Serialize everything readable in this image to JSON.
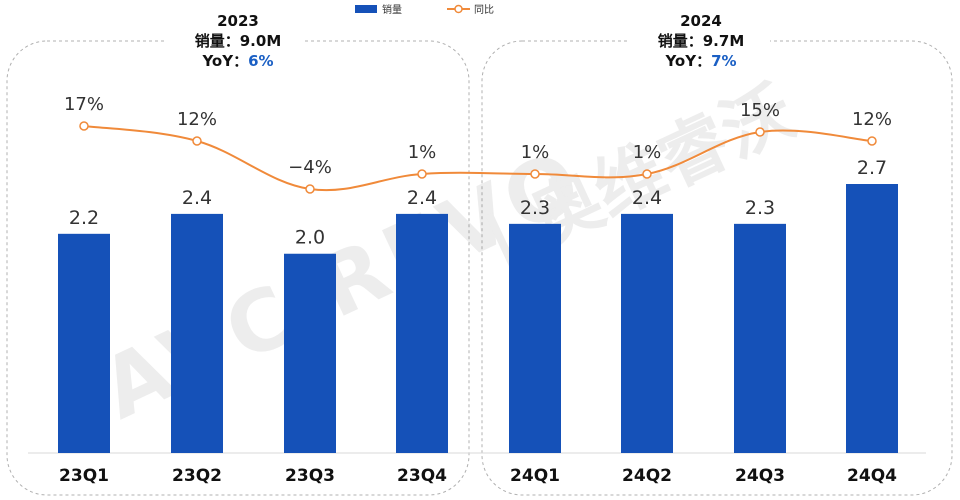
{
  "chart_data": {
    "type": "bar",
    "categories": [
      "23Q1",
      "23Q2",
      "23Q3",
      "23Q4",
      "24Q1",
      "24Q2",
      "24Q3",
      "24Q4"
    ],
    "series": [
      {
        "name": "销量",
        "type": "bar",
        "color": "#1551b8",
        "values": [
          2.2,
          2.4,
          2.0,
          2.4,
          2.3,
          2.4,
          2.3,
          2.7
        ],
        "labels": [
          "2.2",
          "2.4",
          "2.0",
          "2.4",
          "2.3",
          "2.4",
          "2.3",
          "2.7"
        ]
      },
      {
        "name": "同比",
        "type": "line",
        "color": "#f08a3a",
        "values": [
          17,
          12,
          -4,
          1,
          1,
          1,
          15,
          12
        ],
        "labels": [
          "17%",
          "12%",
          "−4%",
          "1%",
          "1%",
          "1%",
          "15%",
          "12%"
        ]
      }
    ],
    "legend_position": "top-center",
    "grid": false,
    "groups": [
      {
        "year": "2023",
        "sales_label": "销量：",
        "sales_value": "9.0M",
        "yoy_label": "YoY：",
        "yoy_value": "6%"
      },
      {
        "year": "2024",
        "sales_label": "销量：",
        "sales_value": "9.7M",
        "yoy_label": "YoY：",
        "yoy_value": "7%"
      }
    ],
    "watermark": "AVC REVO | 奥维睿沃"
  }
}
